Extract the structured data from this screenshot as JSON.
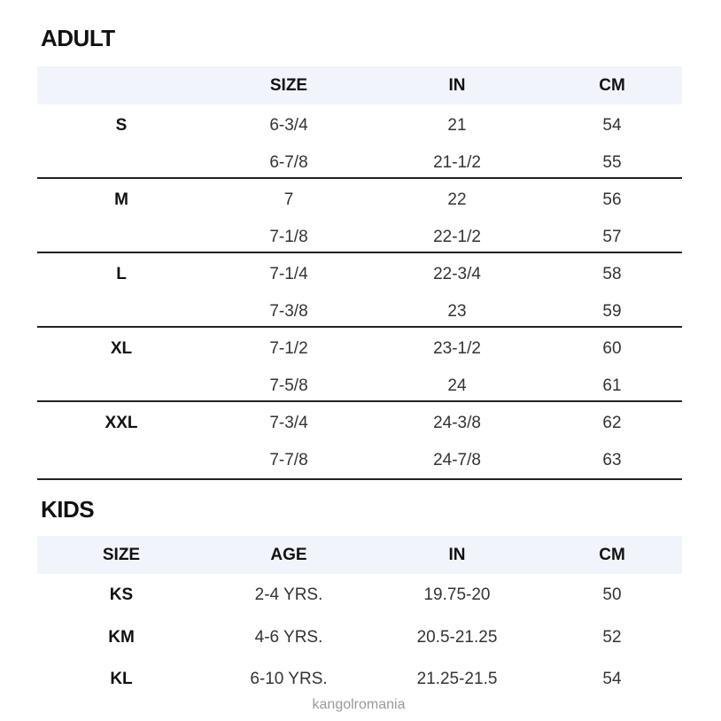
{
  "adult": {
    "title": "ADULT",
    "headers": [
      "",
      "SIZE",
      "IN",
      "CM"
    ],
    "rows": [
      [
        "S",
        "6-3/4",
        "21",
        "54"
      ],
      [
        "",
        "6-7/8",
        "21-1/2",
        "55"
      ],
      [
        "M",
        "7",
        "22",
        "56"
      ],
      [
        "",
        "7-1/8",
        "22-1/2",
        "57"
      ],
      [
        "L",
        "7-1/4",
        "22-3/4",
        "58"
      ],
      [
        "",
        "7-3/8",
        "23",
        "59"
      ],
      [
        "XL",
        "7-1/2",
        "23-1/2",
        "60"
      ],
      [
        "",
        "7-5/8",
        "24",
        "61"
      ],
      [
        "XXL",
        "7-3/4",
        "24-3/8",
        "62"
      ],
      [
        "",
        "7-7/8",
        "24-7/8",
        "63"
      ]
    ]
  },
  "kids": {
    "title": "KIDS",
    "headers": [
      "SIZE",
      "AGE",
      "IN",
      "CM"
    ],
    "rows": [
      [
        "KS",
        "2-4 YRS.",
        "19.75-20",
        "50"
      ],
      [
        "KM",
        "4-6 YRS.",
        "20.5-21.25",
        "52"
      ],
      [
        "KL",
        "6-10 YRS.",
        "21.25-21.5",
        "54"
      ]
    ]
  },
  "watermark": "kangolromania",
  "colors": {
    "header_band": "#f1f4fa",
    "divider": "#222222"
  }
}
